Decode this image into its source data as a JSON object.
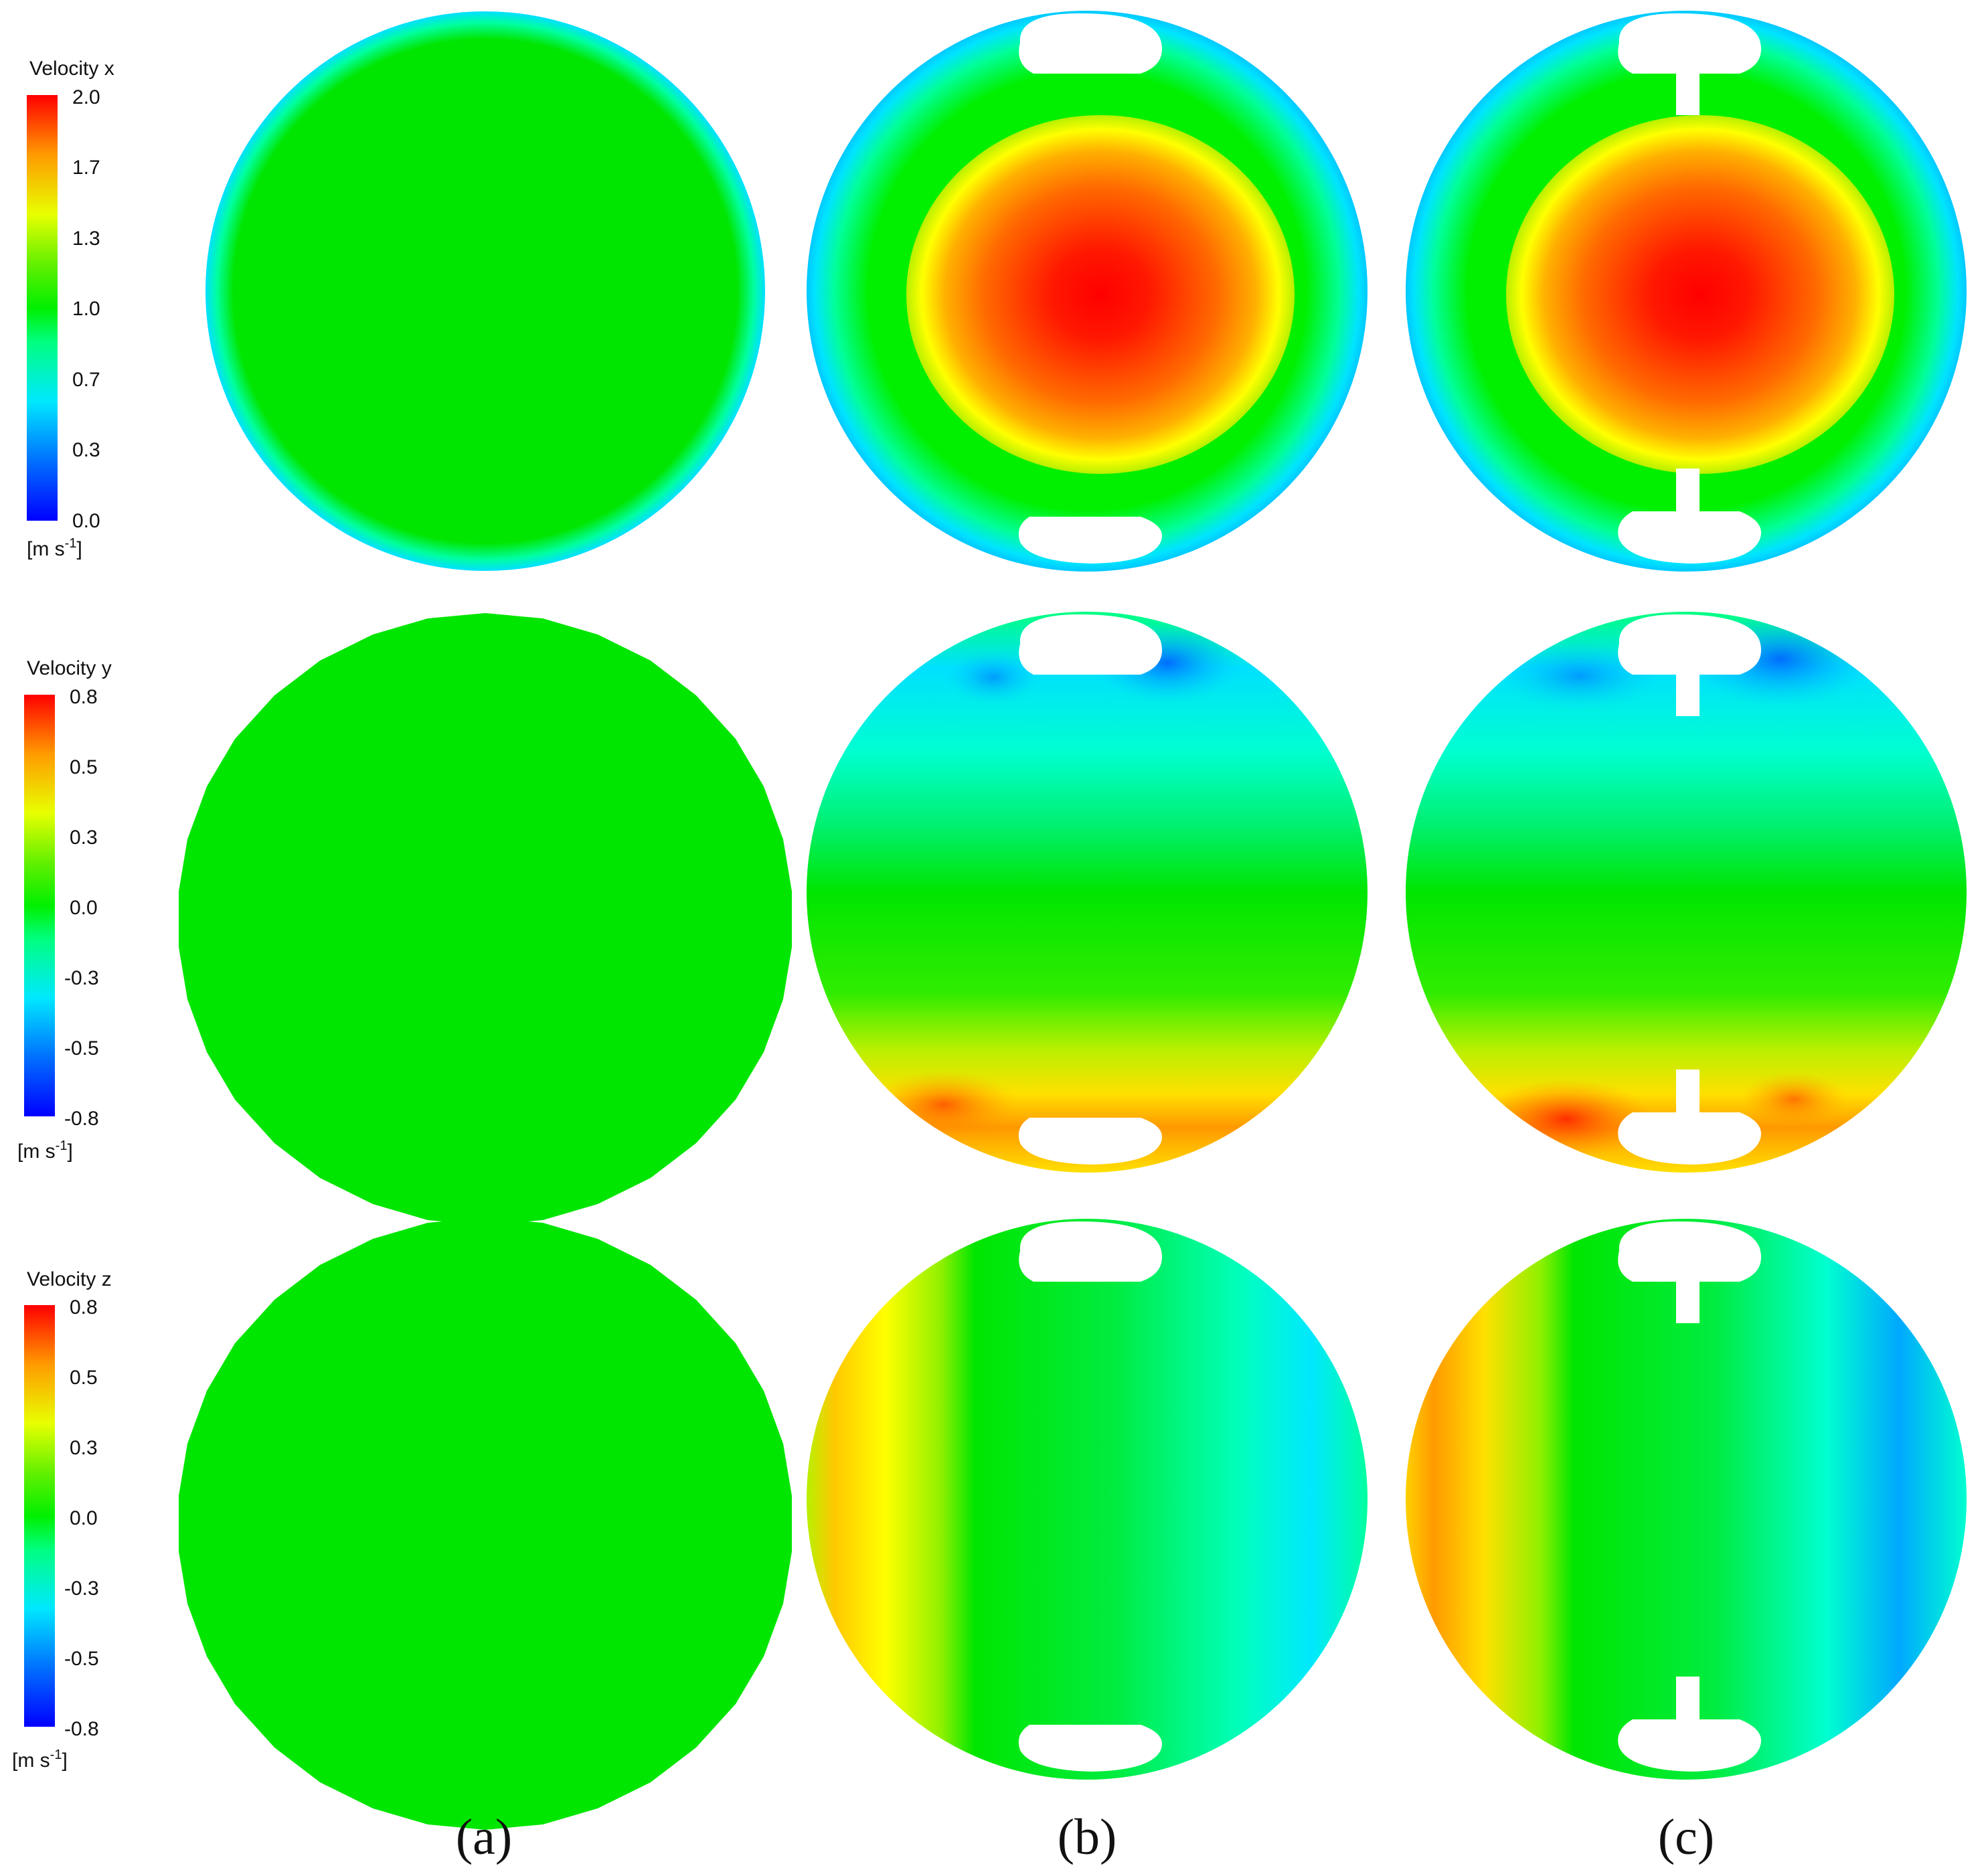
{
  "colors": {
    "colormap": [
      "#0000ff",
      "#00b8ff",
      "#00ffff",
      "#00ff96",
      "#00f000",
      "#98f000",
      "#ffff00",
      "#ffa000",
      "#ff0000"
    ],
    "uniform_field": "#00e600",
    "background": "#ffffff"
  },
  "legends": [
    {
      "id": "velocity-x",
      "title": "Velocity x",
      "ticks": [
        "2.0",
        "1.7",
        "1.3",
        "1.0",
        "0.7",
        "0.3",
        "0.0"
      ],
      "unit_base": "[m s",
      "unit_exp": "-1",
      "unit_close": "]"
    },
    {
      "id": "velocity-y",
      "title": "Velocity y",
      "ticks": [
        "0.8",
        "0.5",
        "0.3",
        "0.0",
        "-0.3",
        "-0.5",
        "-0.8"
      ],
      "unit_base": "[m s",
      "unit_exp": "-1",
      "unit_close": "]"
    },
    {
      "id": "velocity-z",
      "title": "Velocity z",
      "ticks": [
        "0.8",
        "0.5",
        "0.3",
        "0.0",
        "-0.3",
        "-0.5",
        "-0.8"
      ],
      "unit_base": "[m s",
      "unit_exp": "-1",
      "unit_close": "]"
    }
  ],
  "panel_labels": [
    "(a)",
    "(b)",
    "(c)"
  ]
}
